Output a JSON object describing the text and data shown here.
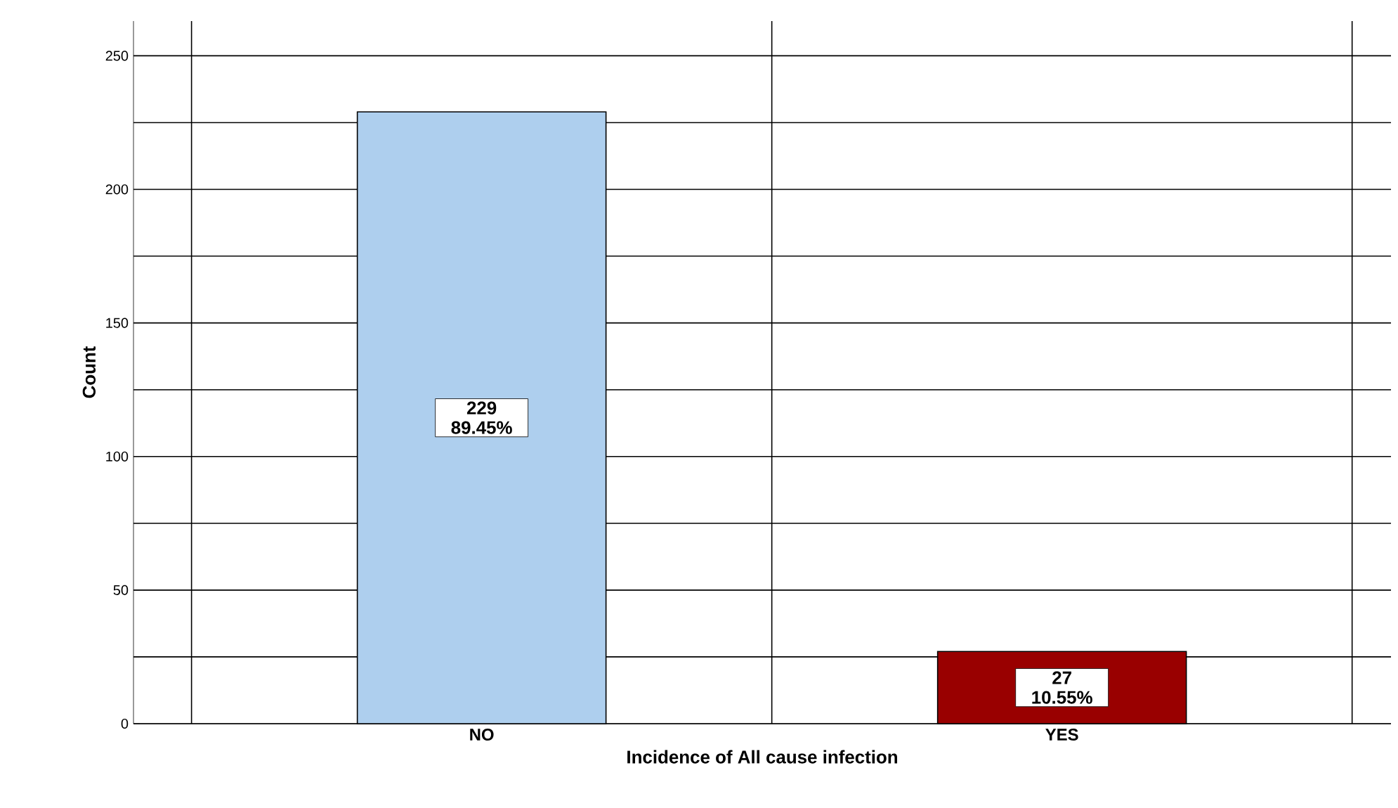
{
  "chart_data": {
    "type": "bar",
    "xlabel": "Incidence of All cause infection",
    "ylabel": "Count",
    "categories": [
      "NO",
      "YES"
    ],
    "values": [
      229,
      27
    ],
    "colors": [
      "#aecfee",
      "#990000"
    ],
    "value_labels": [
      "229 89.45%",
      "27 10.55%"
    ],
    "ylim": [
      0,
      263
    ],
    "yticks": [
      0,
      {
        "value": 25,
        "label": null
      },
      50,
      {
        "value": 75,
        "label": null
      },
      100,
      {
        "value": 125,
        "label": null
      },
      150,
      {
        "value": 175,
        "label": null
      },
      200,
      {
        "value": 225,
        "label": null
      },
      250
    ],
    "grid": true
  }
}
